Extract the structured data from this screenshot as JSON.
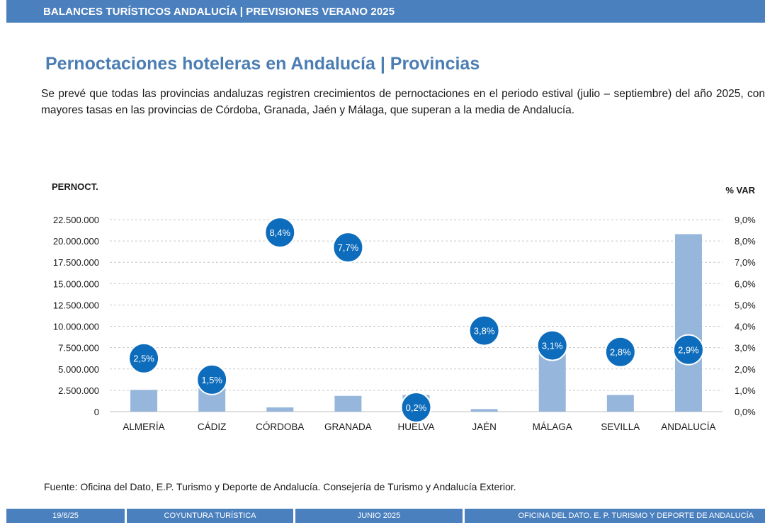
{
  "header": {
    "title": "BALANCES TURÍSTICOS ANDALUCÍA | PREVISIONES VERANO 2025"
  },
  "page": {
    "title": "Pernoctaciones hoteleras en Andalucía | Provincias",
    "intro": "Se prevé que todas las provincias andaluzas registren crecimientos de pernoctaciones en el periodo estival (julio – septiembre) del año 2025, con mayores tasas en las provincias de Córdoba, Granada, Jaén y Málaga, que superan a la media de Andalucía."
  },
  "chart_data": {
    "type": "bar",
    "ylabel": "PERNOCT.",
    "y2label": "% VAR",
    "ylim": [
      0,
      22500000
    ],
    "y2lim": [
      0,
      9
    ],
    "yticks": [
      "0",
      "2.500.000",
      "5.000.000",
      "7.500.000",
      "10.000.000",
      "12.500.000",
      "15.000.000",
      "17.500.000",
      "20.000.000",
      "22.500.000"
    ],
    "y2ticks": [
      "0,0%",
      "1,0%",
      "2,0%",
      "3,0%",
      "4,0%",
      "5,0%",
      "6,0%",
      "7,0%",
      "8,0%",
      "9,0%"
    ],
    "grid": true,
    "categories": [
      "ALMERÍA",
      "CÁDIZ",
      "CÓRDOBA",
      "GRANADA",
      "HUELVA",
      "JAÉN",
      "MÁLAGA",
      "SEVILLA",
      "ANDALUCÍA"
    ],
    "series": [
      {
        "values": [
          2550000,
          2950000,
          500000,
          1850000,
          1950000,
          300000,
          7400000,
          1950000,
          20800000
        ],
        "color": "#97b6dc"
      },
      {
        "values": [
          2.5,
          1.5,
          8.4,
          7.7,
          0.2,
          3.8,
          3.1,
          2.8,
          2.9
        ],
        "labels": [
          "2,5%",
          "1,5%",
          "8,4%",
          "7,7%",
          "0,2%",
          "3,8%",
          "3,1%",
          "2,8%",
          "2,9%"
        ],
        "color": "#0d6cbb"
      }
    ]
  },
  "source": "Fuente: Oficina del Dato, E.P. Turismo y Deporte de Andalucía. Consejería de Turismo y Andalucía Exterior.",
  "footer": {
    "date": "19/6/25",
    "section": "COYUNTURA TURÍSTICA",
    "month": "JUNIO 2025",
    "org": "OFICINA DEL DATO. E. P. TURISMO Y DEPORTE DE ANDALUCÍA"
  }
}
